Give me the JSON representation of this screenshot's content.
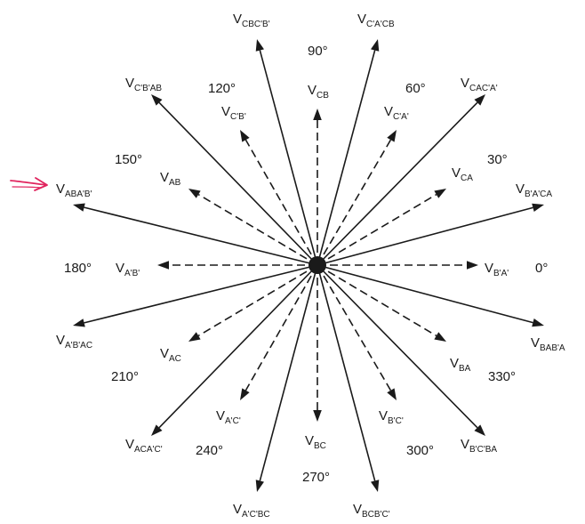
{
  "colors": {
    "ink": "#1a1a1a",
    "pointer": "#e0245e",
    "background": "#ffffff"
  },
  "marker_icon": "hand-drawn-arrow-icon",
  "phasors": [
    {
      "id": "vbpap",
      "angle": 0,
      "style": "dashed",
      "main": "V",
      "sub": "B'A'"
    },
    {
      "id": "vca",
      "angle": 30,
      "style": "dashed",
      "main": "V",
      "sub": "CA"
    },
    {
      "id": "vcpap",
      "angle": 60,
      "style": "dashed",
      "main": "V",
      "sub": "C'A'"
    },
    {
      "id": "vcb",
      "angle": 90,
      "style": "dashed",
      "main": "V",
      "sub": "CB"
    },
    {
      "id": "vcpbp",
      "angle": 120,
      "style": "dashed",
      "main": "V",
      "sub": "C'B'"
    },
    {
      "id": "vab",
      "angle": 150,
      "style": "dashed",
      "main": "V",
      "sub": "AB"
    },
    {
      "id": "vapbp",
      "angle": 180,
      "style": "dashed",
      "main": "V",
      "sub": "A'B'"
    },
    {
      "id": "vac",
      "angle": 210,
      "style": "dashed",
      "main": "V",
      "sub": "AC"
    },
    {
      "id": "vapcp",
      "angle": 240,
      "style": "dashed",
      "main": "V",
      "sub": "A'C'"
    },
    {
      "id": "vbc",
      "angle": 270,
      "style": "dashed",
      "main": "V",
      "sub": "BC"
    },
    {
      "id": "vbpcp",
      "angle": 300,
      "style": "dashed",
      "main": "V",
      "sub": "B'C'"
    },
    {
      "id": "vba",
      "angle": 330,
      "style": "dashed",
      "main": "V",
      "sub": "BA"
    },
    {
      "id": "vbpaca",
      "angle": 15,
      "style": "solid",
      "main": "V",
      "sub": "B'A'CA"
    },
    {
      "id": "vcacpap",
      "angle": 45,
      "style": "solid",
      "main": "V",
      "sub": "CAC'A'"
    },
    {
      "id": "vcpapcb",
      "angle": 75,
      "style": "solid",
      "main": "V",
      "sub": "C'A'CB"
    },
    {
      "id": "vcbcpbp",
      "angle": 105,
      "style": "solid",
      "main": "V",
      "sub": "CBC'B'"
    },
    {
      "id": "vcpbpab",
      "angle": 135,
      "style": "solid",
      "main": "V",
      "sub": "C'B'AB"
    },
    {
      "id": "vabapbp",
      "angle": 165,
      "style": "solid",
      "main": "V",
      "sub": "ABA'B'"
    },
    {
      "id": "vapbpac",
      "angle": 195,
      "style": "solid",
      "main": "V",
      "sub": "A'B'AC"
    },
    {
      "id": "vacapcp",
      "angle": 225,
      "style": "solid",
      "main": "V",
      "sub": "ACA'C'"
    },
    {
      "id": "vapcpbc",
      "angle": 255,
      "style": "solid",
      "main": "V",
      "sub": "A'C'BC"
    },
    {
      "id": "vbcbpcp",
      "angle": 285,
      "style": "solid",
      "main": "V",
      "sub": "BCB'C'"
    },
    {
      "id": "vbpcpba",
      "angle": 315,
      "style": "solid",
      "main": "V",
      "sub": "B'C'BA"
    },
    {
      "id": "vbabpa",
      "angle": 345,
      "style": "solid",
      "main": "V",
      "sub": "BAB'A"
    }
  ],
  "angle_labels": [
    {
      "id": "deg0",
      "text": "0°"
    },
    {
      "id": "deg30",
      "text": "30°"
    },
    {
      "id": "deg60",
      "text": "60°"
    },
    {
      "id": "deg90",
      "text": "90°"
    },
    {
      "id": "deg120",
      "text": "120°"
    },
    {
      "id": "deg150",
      "text": "150°"
    },
    {
      "id": "deg180",
      "text": "180°"
    },
    {
      "id": "deg210",
      "text": "210°"
    },
    {
      "id": "deg240",
      "text": "240°"
    },
    {
      "id": "deg270",
      "text": "270°"
    },
    {
      "id": "deg300",
      "text": "300°"
    },
    {
      "id": "deg330",
      "text": "330°"
    }
  ]
}
